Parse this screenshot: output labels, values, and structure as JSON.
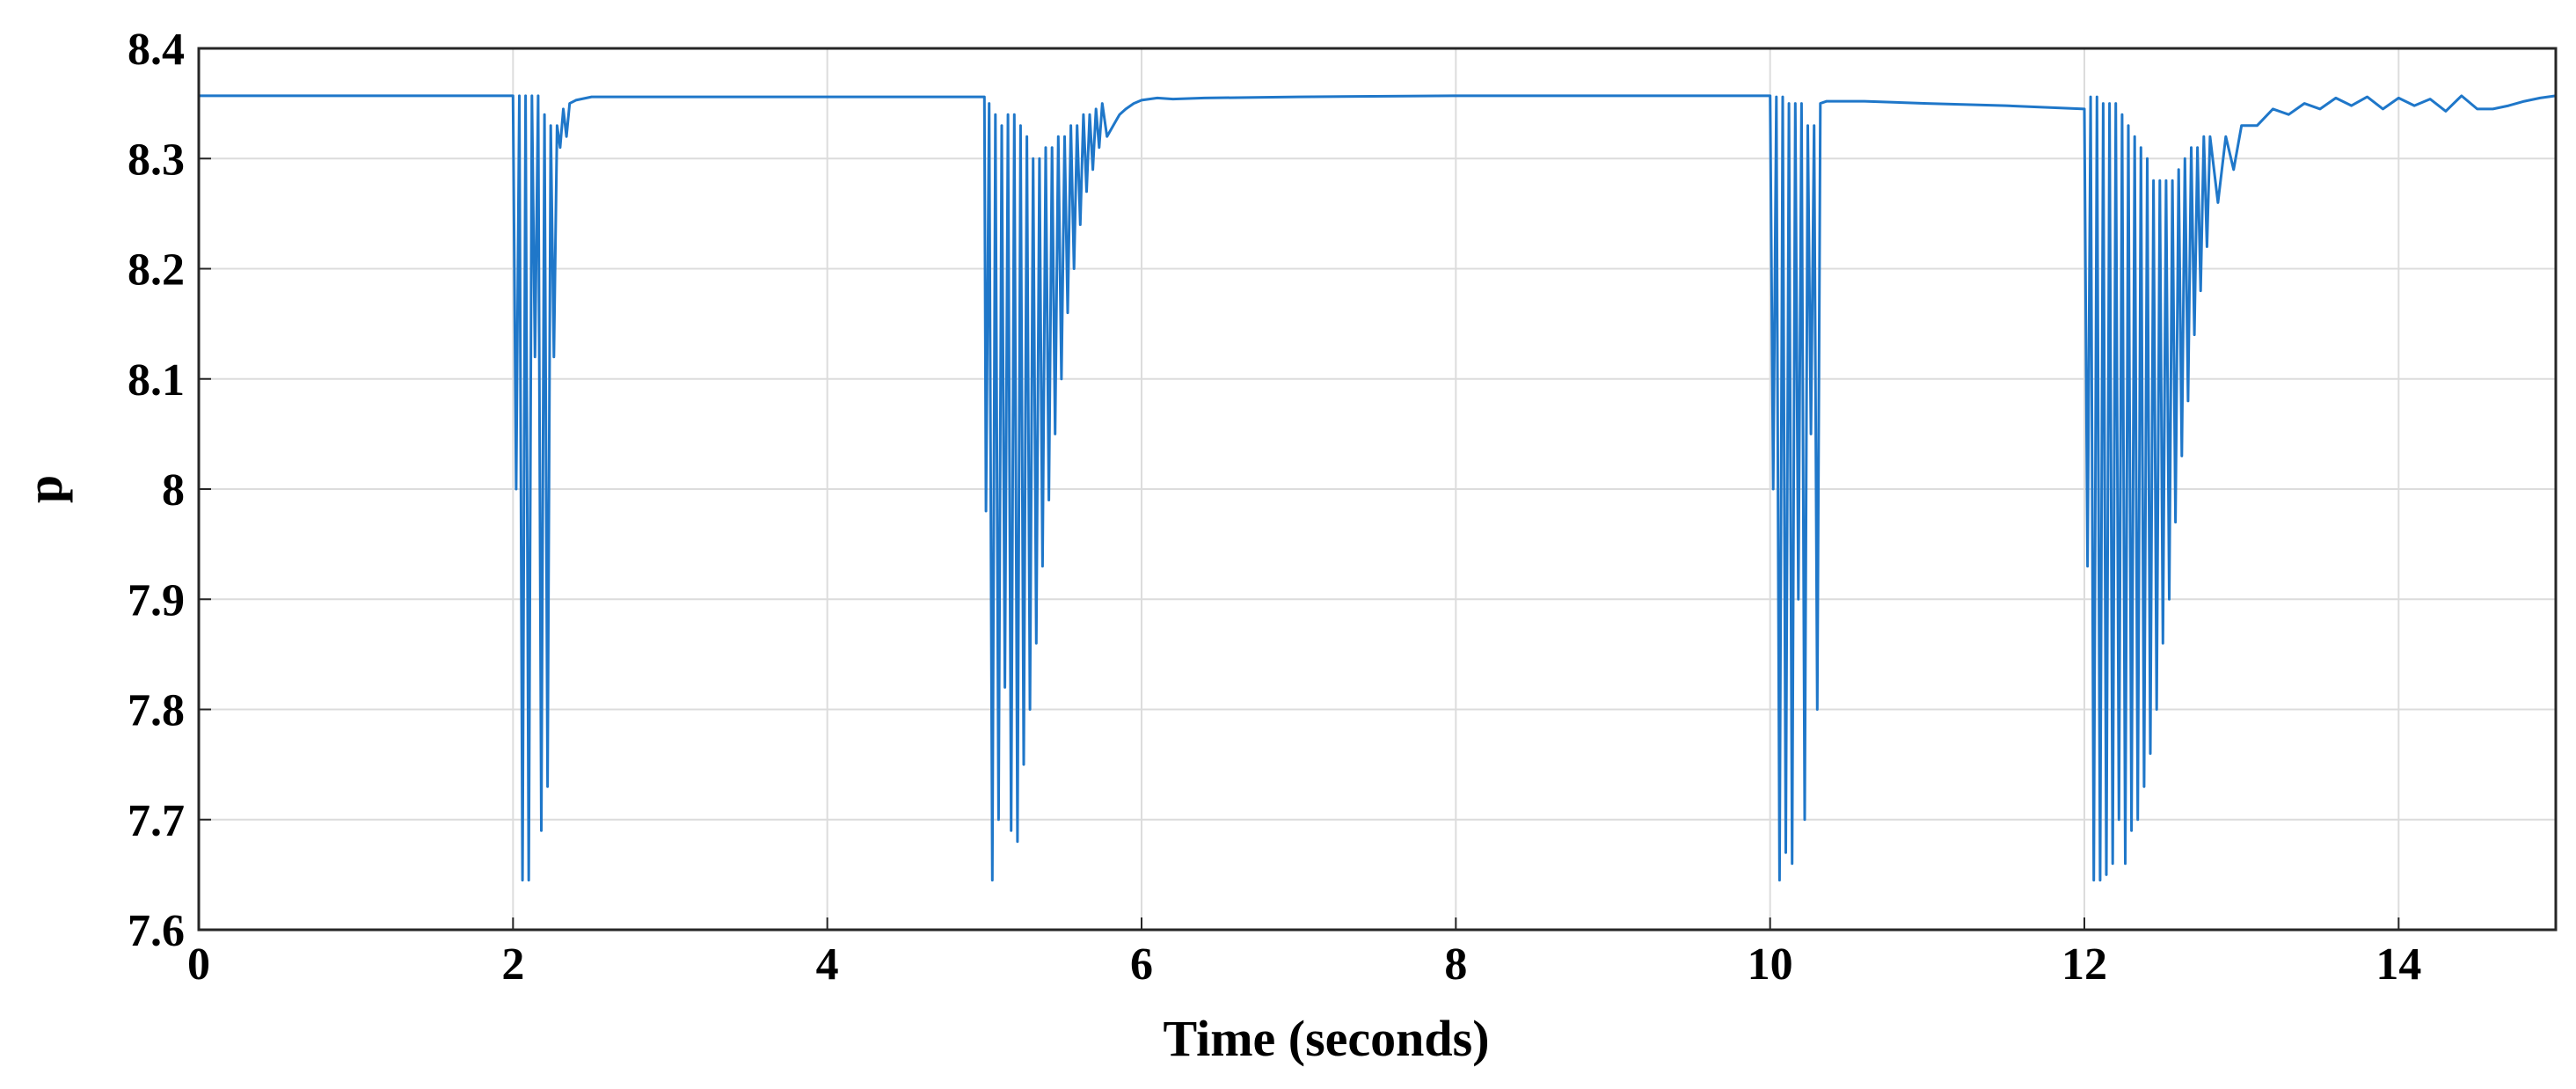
{
  "chart_data": {
    "type": "line",
    "title": "",
    "xlabel": "Time (seconds)",
    "ylabel": "p",
    "xlim": [
      0,
      15
    ],
    "ylim": [
      7.6,
      8.4
    ],
    "x_ticks": [
      0,
      2,
      4,
      6,
      8,
      10,
      12,
      14
    ],
    "x_tick_labels": [
      "0",
      "2",
      "4",
      "6",
      "8",
      "10",
      "12",
      "14"
    ],
    "y_ticks": [
      7.6,
      7.7,
      7.8,
      7.9,
      8.0,
      8.1,
      8.2,
      8.3,
      8.4
    ],
    "y_tick_labels": [
      "7.6",
      "7.7",
      "7.8",
      "7.9",
      "8",
      "8.1",
      "8.2",
      "8.3",
      "8.4"
    ],
    "grid": true,
    "line_color": "#1f77c9",
    "series": [
      {
        "x": [
          0,
          2.0,
          2.02,
          2.04,
          2.06,
          2.08,
          2.1,
          2.12,
          2.14,
          2.16,
          2.18,
          2.2,
          2.22,
          2.24,
          2.26,
          2.28,
          2.3,
          2.32,
          2.34,
          2.36,
          2.4,
          2.5,
          5.0,
          5.01,
          5.03,
          5.05,
          5.07,
          5.09,
          5.11,
          5.13,
          5.15,
          5.17,
          5.19,
          5.21,
          5.23,
          5.25,
          5.27,
          5.29,
          5.31,
          5.33,
          5.35,
          5.37,
          5.39,
          5.41,
          5.43,
          5.45,
          5.47,
          5.49,
          5.51,
          5.53,
          5.55,
          5.57,
          5.59,
          5.61,
          5.63,
          5.65,
          5.67,
          5.69,
          5.71,
          5.73,
          5.75,
          5.78,
          5.82,
          5.86,
          5.9,
          5.95,
          6.0,
          6.1,
          6.2,
          6.4,
          7.0,
          8.0,
          9.0,
          9.9,
          10.0,
          10.02,
          10.04,
          10.06,
          10.08,
          10.1,
          10.12,
          10.14,
          10.16,
          10.18,
          10.2,
          10.22,
          10.24,
          10.26,
          10.28,
          10.3,
          10.32,
          10.36,
          10.4,
          10.6,
          11.0,
          11.5,
          12.0,
          12.02,
          12.04,
          12.06,
          12.08,
          12.1,
          12.12,
          12.14,
          12.16,
          12.18,
          12.2,
          12.22,
          12.24,
          12.26,
          12.28,
          12.3,
          12.32,
          12.34,
          12.36,
          12.38,
          12.4,
          12.42,
          12.44,
          12.46,
          12.48,
          12.5,
          12.52,
          12.54,
          12.56,
          12.58,
          12.6,
          12.62,
          12.64,
          12.66,
          12.68,
          12.7,
          12.72,
          12.74,
          12.76,
          12.78,
          12.8,
          12.85,
          12.9,
          12.95,
          13.0,
          13.1,
          13.2,
          13.3,
          13.4,
          13.5,
          13.6,
          13.7,
          13.8,
          13.9,
          14.0,
          14.1,
          14.2,
          14.3,
          14.4,
          14.5,
          14.6,
          14.7,
          14.8,
          14.9,
          15.0
        ],
        "y": [
          8.357,
          8.357,
          8.0,
          8.357,
          7.645,
          8.357,
          7.645,
          8.357,
          8.12,
          8.357,
          7.69,
          8.34,
          7.73,
          8.33,
          8.12,
          8.33,
          8.31,
          8.345,
          8.32,
          8.35,
          8.353,
          8.356,
          8.356,
          7.98,
          8.35,
          7.645,
          8.34,
          7.7,
          8.33,
          7.82,
          8.34,
          7.69,
          8.34,
          7.68,
          8.33,
          7.75,
          8.32,
          7.8,
          8.3,
          7.86,
          8.3,
          7.93,
          8.31,
          7.99,
          8.31,
          8.05,
          8.32,
          8.1,
          8.32,
          8.16,
          8.33,
          8.2,
          8.33,
          8.24,
          8.34,
          8.27,
          8.34,
          8.29,
          8.345,
          8.31,
          8.35,
          8.32,
          8.33,
          8.34,
          8.345,
          8.35,
          8.353,
          8.355,
          8.354,
          8.355,
          8.356,
          8.357,
          8.357,
          8.357,
          8.357,
          8.0,
          8.356,
          7.645,
          8.356,
          7.67,
          8.35,
          7.66,
          8.35,
          7.9,
          8.35,
          7.7,
          8.33,
          8.05,
          8.33,
          7.8,
          8.35,
          8.352,
          8.352,
          8.352,
          8.35,
          8.348,
          8.345,
          7.93,
          8.356,
          7.645,
          8.356,
          7.645,
          8.35,
          7.65,
          8.35,
          7.66,
          8.35,
          7.7,
          8.34,
          7.66,
          8.33,
          7.69,
          8.32,
          7.7,
          8.31,
          7.73,
          8.3,
          7.76,
          8.28,
          7.8,
          8.28,
          7.86,
          8.28,
          7.9,
          8.28,
          7.97,
          8.29,
          8.03,
          8.3,
          8.08,
          8.31,
          8.14,
          8.31,
          8.18,
          8.32,
          8.22,
          8.32,
          8.26,
          8.32,
          8.29,
          8.33,
          8.33,
          8.345,
          8.34,
          8.35,
          8.345,
          8.355,
          8.348,
          8.356,
          8.345,
          8.355,
          8.348,
          8.354,
          8.343,
          8.357,
          8.345,
          8.345,
          8.348,
          8.352,
          8.355,
          8.357
        ]
      }
    ]
  }
}
